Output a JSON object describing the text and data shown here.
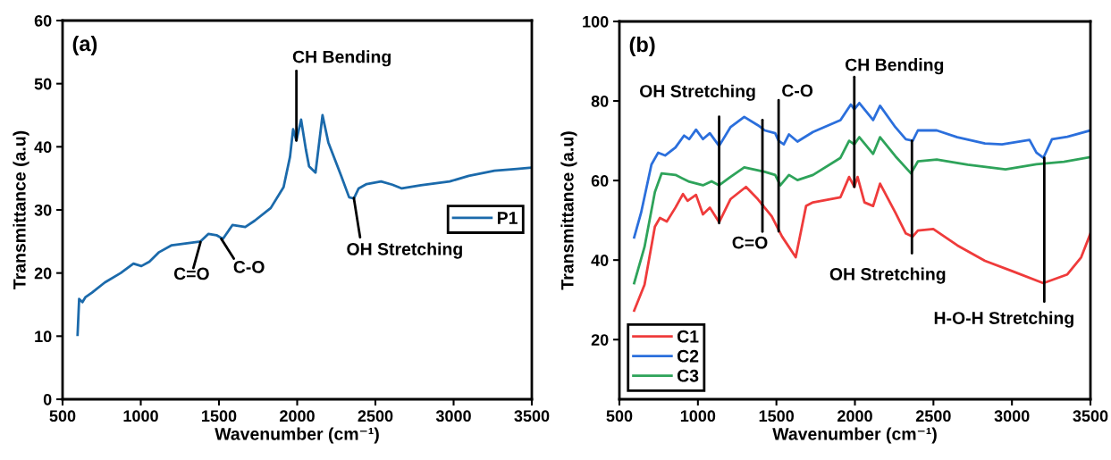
{
  "chart_data": [
    {
      "type": "line",
      "xlabel": "Wavenumber (cm⁻¹)",
      "ylabel": "Transmittance (a.u)",
      "xlim": [
        500,
        3500
      ],
      "xticks": [
        500,
        1000,
        1500,
        2000,
        2500,
        3000,
        3500
      ],
      "ylim": [
        0,
        60
      ],
      "yticks": [
        0,
        10,
        20,
        30,
        40,
        50,
        60
      ],
      "legend": "right",
      "grid": false,
      "annotations": [
        "(a)",
        {
          "text": "CH Bending",
          "x": 1995,
          "y": 41.0
        },
        {
          "text": "C=O",
          "x": 1382,
          "y": 24.9
        },
        {
          "text": "C-O",
          "x": 1515,
          "y": 25.4
        },
        {
          "text": "OH Stretching",
          "x": 2362,
          "y": 31.9
        }
      ],
      "series": [
        {
          "name": "P1",
          "color": "#1b6aab",
          "x": [
            596,
            606,
            627,
            647,
            688,
            770,
            872,
            953,
            1004,
            1055,
            1117,
            1198,
            1382,
            1433,
            1484,
            1525,
            1586,
            1668,
            1729,
            1831,
            1913,
            1954,
            1974,
            1995,
            2025,
            2056,
            2076,
            2117,
            2162,
            2199,
            2281,
            2332,
            2362,
            2393,
            2444,
            2536,
            2608,
            2669,
            2791,
            2975,
            3097,
            3261,
            3404,
            3500
          ],
          "values": [
            10.2,
            15.9,
            15.4,
            16.2,
            16.9,
            18.5,
            20.0,
            21.5,
            21.1,
            21.8,
            23.3,
            24.4,
            25.0,
            26.2,
            26.0,
            25.4,
            27.6,
            27.3,
            28.3,
            30.3,
            33.6,
            38.4,
            42.8,
            41.0,
            44.3,
            39.5,
            36.9,
            35.9,
            45.0,
            40.7,
            35.4,
            32.0,
            31.8,
            33.4,
            34.1,
            34.5,
            34.0,
            33.4,
            33.9,
            34.5,
            35.4,
            36.2,
            36.5,
            36.7
          ]
        }
      ]
    },
    {
      "type": "line",
      "xlabel": "Wavenumber (cm⁻¹)",
      "ylabel": "Transmittance (a.u)",
      "xlim": [
        500,
        3500
      ],
      "xticks": [
        500,
        1000,
        1500,
        2000,
        2500,
        3000,
        3500
      ],
      "ylim": [
        5,
        100
      ],
      "yticks": [
        20,
        40,
        60,
        80,
        100
      ],
      "legend": "bottom left",
      "grid": false,
      "annotations": [
        "(b)",
        {
          "text": "OH Stretching",
          "x": 1135,
          "y": 49.3
        },
        {
          "text": "C=O",
          "x": 1411,
          "y": 53.9
        },
        {
          "text": "C-O",
          "x": 1514,
          "y": 47.2
        },
        {
          "text": "CH Bending",
          "x": 1996,
          "y": 58.4
        },
        {
          "text": "OH Stretching",
          "x": 2363,
          "y": 70.0
        },
        {
          "text": "H-O-H Stretching",
          "x": 3206,
          "y": 65.7
        }
      ],
      "series": [
        {
          "name": "C1",
          "color": "#ef3b3b",
          "x": [
            594,
            660,
            726,
            758,
            802,
            857,
            905,
            934,
            988,
            1032,
            1076,
            1135,
            1207,
            1306,
            1382,
            1470,
            1536,
            1623,
            1689,
            1733,
            1908,
            1963,
            1996,
            2017,
            2061,
            2116,
            2160,
            2258,
            2324,
            2368,
            2401,
            2499,
            2652,
            2828,
            3003,
            3200,
            3353,
            3441,
            3500
          ],
          "values": [
            27.3,
            33.8,
            48.4,
            50.6,
            49.7,
            53.2,
            56.6,
            54.9,
            56.4,
            51.5,
            53.2,
            49.5,
            55.3,
            58.4,
            55.3,
            51.0,
            45.9,
            40.7,
            53.6,
            54.5,
            55.8,
            60.9,
            58.4,
            60.9,
            54.5,
            53.6,
            59.2,
            51.9,
            46.7,
            45.9,
            47.4,
            47.8,
            43.7,
            39.8,
            37.2,
            34.2,
            36.4,
            40.7,
            46.7
          ]
        },
        {
          "name": "C2",
          "color": "#2b6fdc",
          "x": [
            594,
            638,
            704,
            747,
            791,
            857,
            912,
            945,
            988,
            1032,
            1076,
            1135,
            1207,
            1295,
            1382,
            1426,
            1492,
            1514,
            1547,
            1580,
            1634,
            1733,
            1908,
            1974,
            1996,
            2028,
            2116,
            2160,
            2258,
            2324,
            2368,
            2401,
            2521,
            2652,
            2828,
            2937,
            3112,
            3156,
            3200,
            3255,
            3353,
            3500
          ],
          "values": [
            45.7,
            51.9,
            64.0,
            67.0,
            66.3,
            68.3,
            71.3,
            70.4,
            72.8,
            70.4,
            71.9,
            68.7,
            73.4,
            76.0,
            73.9,
            72.6,
            71.9,
            70.0,
            69.1,
            71.6,
            69.8,
            72.2,
            75.2,
            79.1,
            77.9,
            79.5,
            75.2,
            78.8,
            73.4,
            70.4,
            70.0,
            72.6,
            72.6,
            70.9,
            69.3,
            69.1,
            70.2,
            67.0,
            65.7,
            70.4,
            71.0,
            72.6
          ]
        },
        {
          "name": "C3",
          "color": "#2ea35a",
          "x": [
            594,
            660,
            726,
            769,
            857,
            945,
            1032,
            1087,
            1135,
            1207,
            1295,
            1426,
            1492,
            1525,
            1580,
            1634,
            1733,
            1908,
            1963,
            1996,
            2028,
            2116,
            2160,
            2258,
            2357,
            2401,
            2521,
            2718,
            2959,
            3156,
            3331,
            3500
          ],
          "values": [
            34.2,
            43.3,
            57.1,
            61.8,
            61.4,
            59.7,
            58.8,
            59.8,
            58.8,
            60.9,
            63.3,
            62.2,
            61.4,
            58.8,
            61.4,
            60.1,
            61.4,
            65.7,
            70.0,
            69.1,
            70.9,
            66.7,
            70.9,
            66.1,
            61.8,
            64.8,
            65.3,
            64.0,
            62.8,
            64.1,
            64.7,
            65.9
          ]
        }
      ]
    }
  ]
}
